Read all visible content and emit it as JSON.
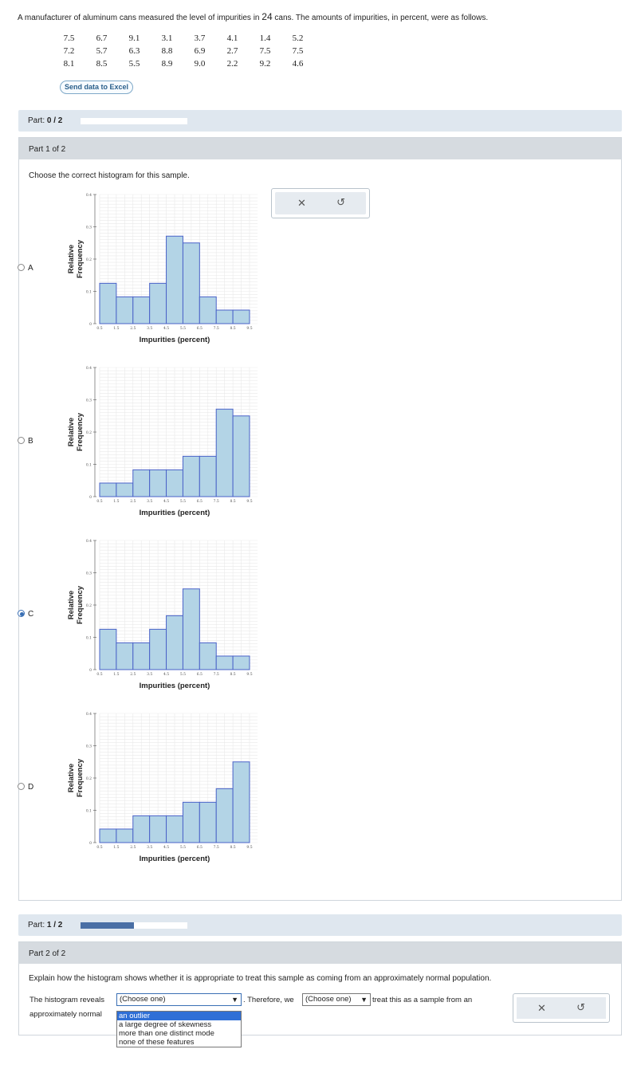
{
  "problem": {
    "intro_before": "A manufacturer of aluminum cans measured the level of impurities in ",
    "intro_number": "24",
    "intro_after": " cans. The amounts of impurities, in percent, were as follows.",
    "rows": [
      [
        "7.5",
        "6.7",
        "9.1",
        "3.1",
        "3.7",
        "4.1",
        "1.4",
        "5.2"
      ],
      [
        "7.2",
        "5.7",
        "6.3",
        "8.8",
        "6.9",
        "2.7",
        "7.5",
        "7.5"
      ],
      [
        "8.1",
        "8.5",
        "5.5",
        "8.9",
        "9.0",
        "2.2",
        "9.2",
        "4.6"
      ]
    ],
    "excel_button": "Send data to Excel"
  },
  "progress_top": {
    "label": "Part: ",
    "value": "0 / 2",
    "fraction": 0.0
  },
  "part1": {
    "header": "Part 1 of 2",
    "prompt": "Choose the correct histogram for this sample.",
    "ylabel_line1": "Relative",
    "ylabel_line2": "Frequency",
    "xlabel": "Impurities (percent)",
    "xticks": [
      "0.5",
      "1.5",
      "2.5",
      "3.5",
      "4.5",
      "5.5",
      "6.5",
      "7.5",
      "8.5",
      "9.5"
    ],
    "yticks": [
      "0",
      "0.1",
      "0.2",
      "0.3",
      "0.4"
    ],
    "selected": "C",
    "options": [
      {
        "label": "A",
        "values": [
          0.125,
          0.083,
          0.083,
          0.125,
          0.271,
          0.25,
          0.083,
          0.042,
          0.042
        ]
      },
      {
        "label": "B",
        "values": [
          0.042,
          0.042,
          0.083,
          0.083,
          0.083,
          0.125,
          0.125,
          0.271,
          0.25
        ]
      },
      {
        "label": "C",
        "values": [
          0.125,
          0.083,
          0.083,
          0.125,
          0.167,
          0.25,
          0.083,
          0.042,
          0.042
        ]
      },
      {
        "label": "D",
        "values": [
          0.042,
          0.042,
          0.083,
          0.083,
          0.083,
          0.125,
          0.125,
          0.167,
          0.25
        ]
      }
    ]
  },
  "progress_mid": {
    "label": "Part: ",
    "value": "1 / 2",
    "fraction": 0.5
  },
  "part2": {
    "header": "Part 2 of 2",
    "prompt": "Explain how the histogram shows whether it is appropriate to treat this sample as coming from an approximately normal population.",
    "text1": "The histogram reveals",
    "select1": "(Choose one)",
    "text2": ". Therefore, we",
    "select2": "(Choose one)",
    "text3": "treat this as a sample from an",
    "text4": "approximately normal",
    "dropdown_options": [
      "an outlier",
      "a large degree of skewness",
      "more than one distinct mode",
      "none of these features"
    ],
    "dropdown_highlight": 0
  },
  "icons": {
    "clear": "close-icon",
    "reset": "undo-icon"
  },
  "colors": {
    "bar_fill": "#b3d4e6",
    "bar_stroke": "#4a62c8",
    "progress": "#4a6fa5",
    "selection": "#2f6fd6"
  }
}
